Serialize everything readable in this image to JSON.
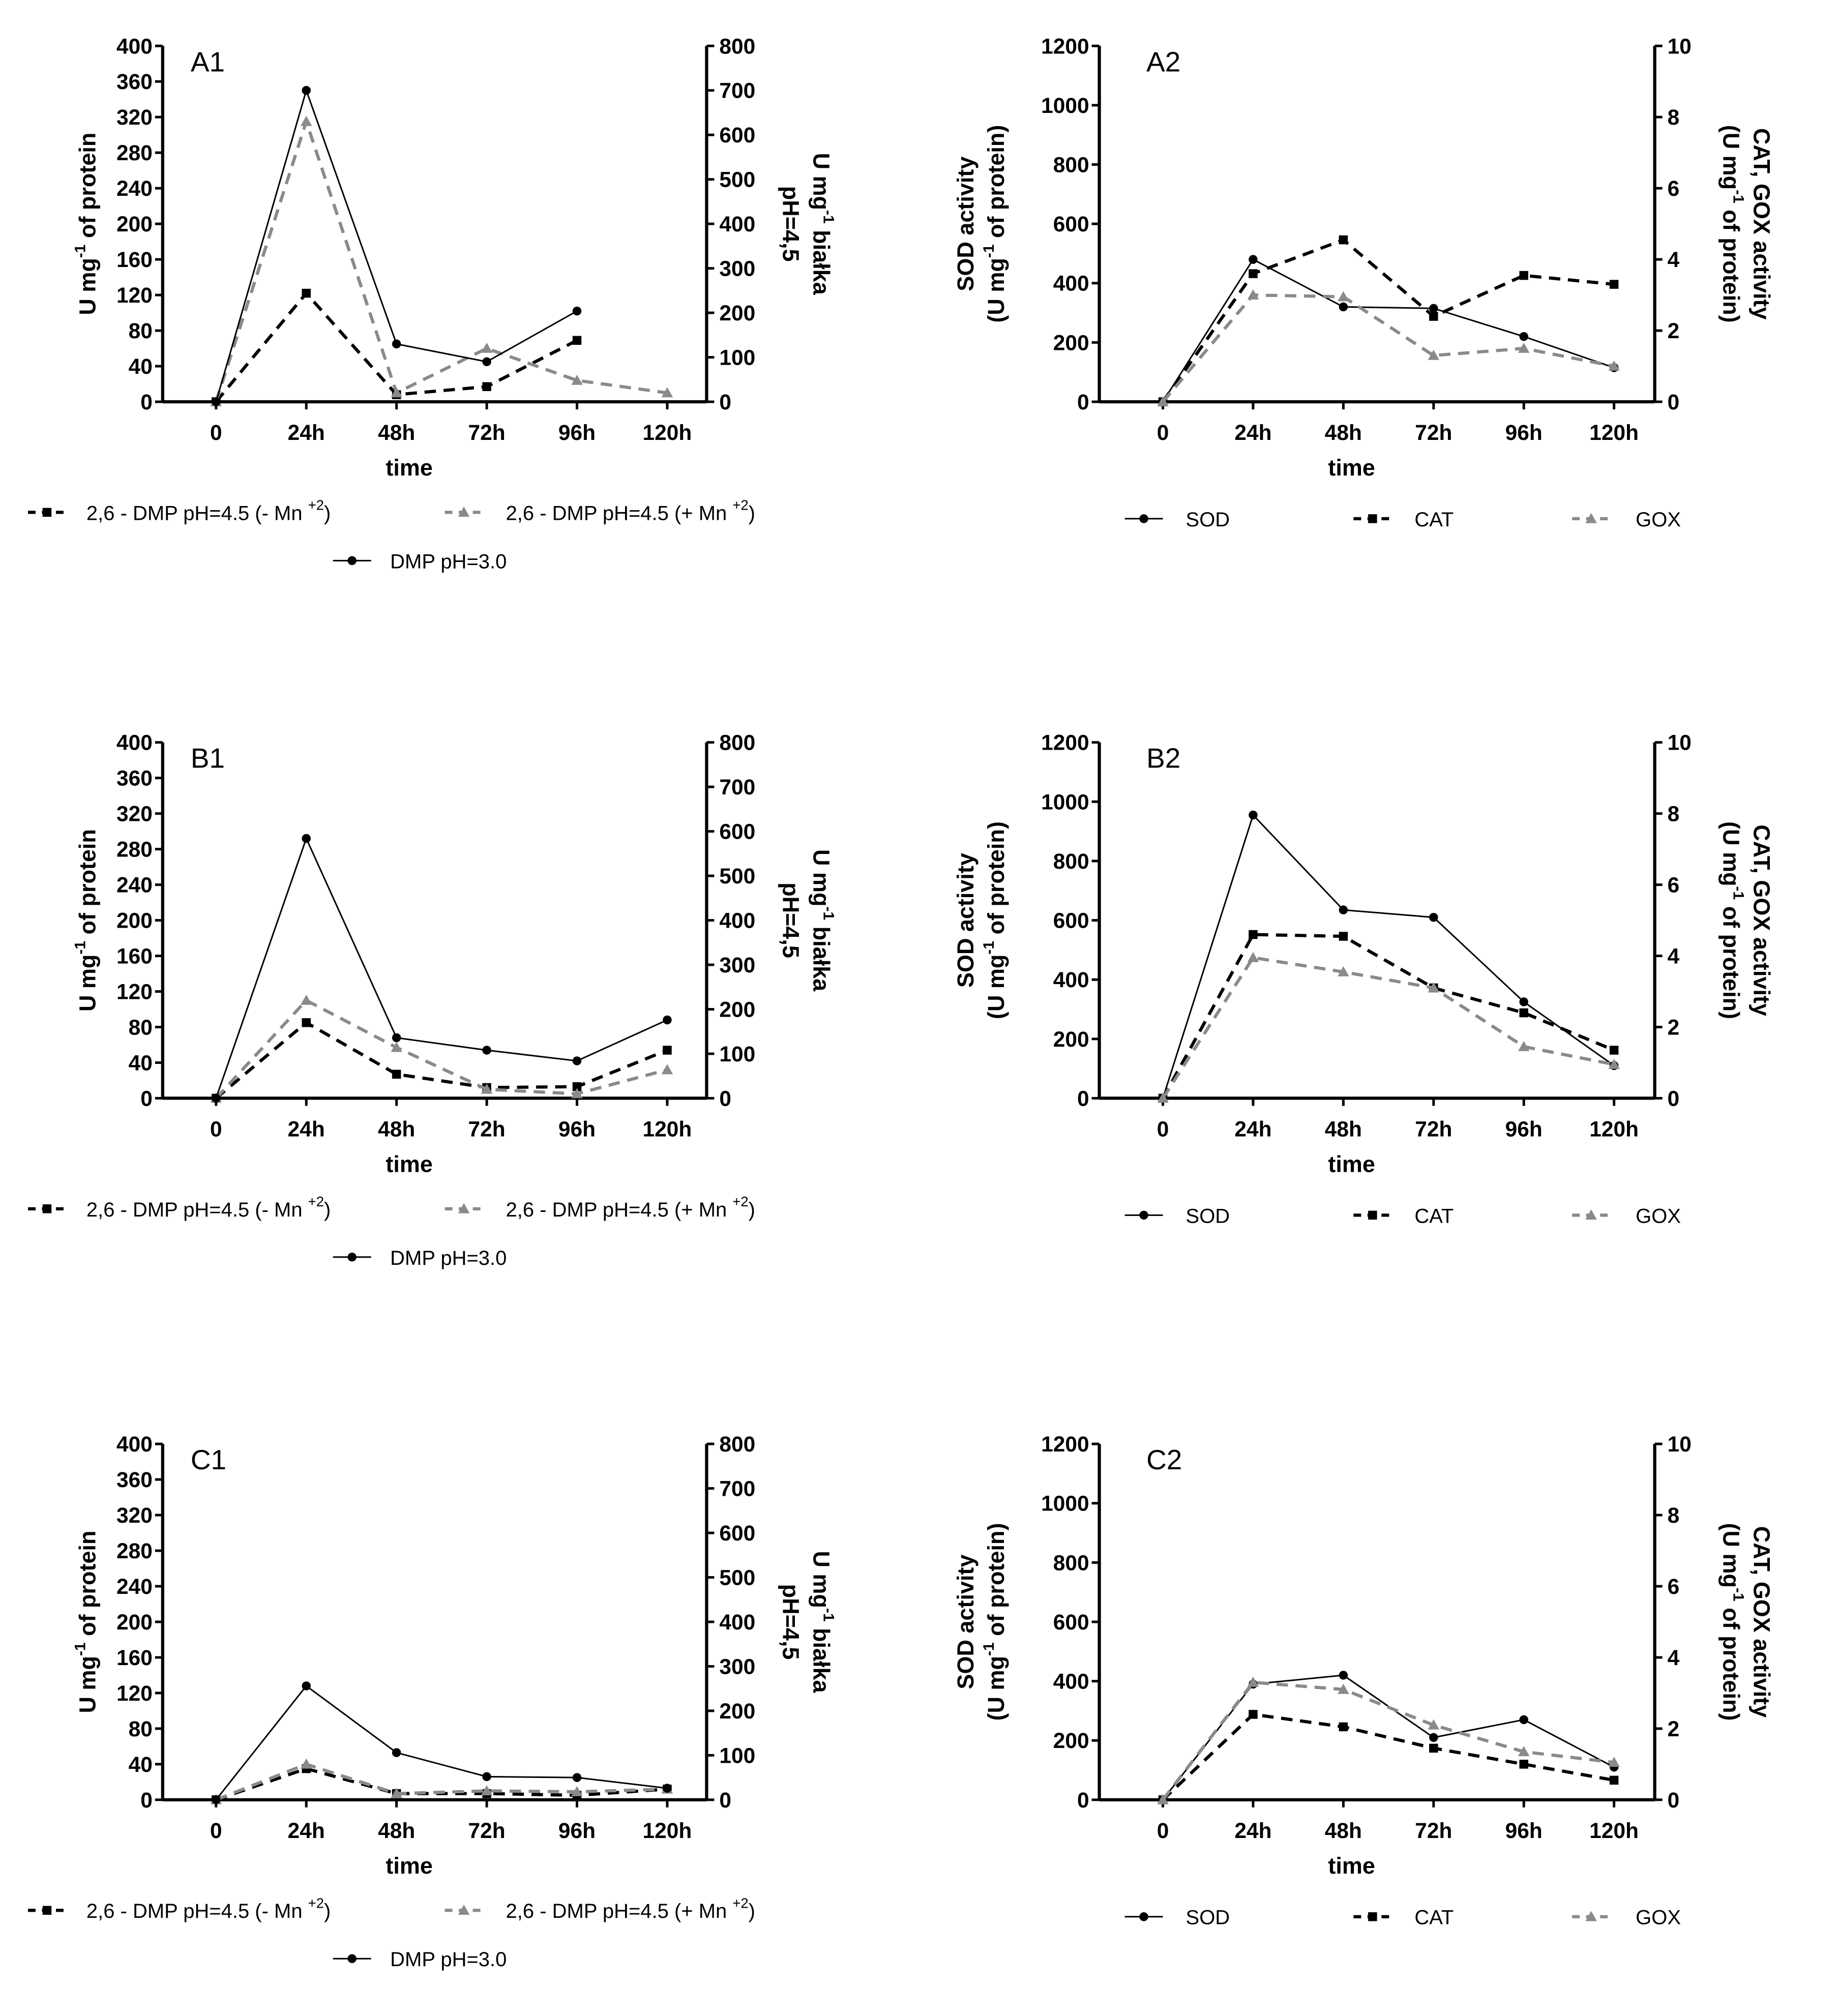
{
  "chart_data": [
    {
      "panel": "A1",
      "type": "line",
      "categories": [
        "0",
        "24h",
        "48h",
        "72h",
        "96h",
        "120h"
      ],
      "xlabel": "time",
      "ylabel_left": [
        "U mg|-1| of protein"
      ],
      "ylabel_right": [
        "U mg|-1| białka",
        "pH=4,5"
      ],
      "ylim_left": [
        0,
        400
      ],
      "ytick_step_left": 40,
      "ylim_right": [
        0,
        800
      ],
      "ytick_step_right": 100,
      "series": [
        {
          "name": "2,6 - DMP pH=4.5 (- Mn |+2|)",
          "axis": "right",
          "style": "dash",
          "marker": "square",
          "color": "#000000",
          "values": [
            0,
            244,
            16,
            34,
            138,
            null
          ]
        },
        {
          "name": "2,6 - DMP pH=4.5 (+ Mn |+2|)",
          "axis": "right",
          "style": "dash",
          "marker": "triangle",
          "color": "#8a8a8a",
          "values": [
            0,
            630,
            20,
            120,
            48,
            20
          ]
        },
        {
          "name": "DMP pH=3.0",
          "axis": "left",
          "style": "solid",
          "marker": "circle",
          "color": "#000000",
          "values": [
            0,
            350,
            65,
            45,
            102,
            null
          ]
        }
      ]
    },
    {
      "panel": "A2",
      "type": "line",
      "categories": [
        "0",
        "24h",
        "48h",
        "72h",
        "96h",
        "120h"
      ],
      "xlabel": "time",
      "ylabel_left": [
        "SOD activity",
        "(U mg|-1| of protein)"
      ],
      "ylabel_right": [
        "CAT, GOX activity",
        "(U mg|-1| of protein)"
      ],
      "ylim_left": [
        0,
        1200
      ],
      "ytick_step_left": 200,
      "ylim_right": [
        0,
        10
      ],
      "ytick_step_right": 2,
      "series": [
        {
          "name": "SOD",
          "axis": "left",
          "style": "solid",
          "marker": "circle",
          "color": "#000000",
          "values": [
            0,
            480,
            320,
            315,
            220,
            115
          ]
        },
        {
          "name": "CAT",
          "axis": "right",
          "style": "dash",
          "marker": "square",
          "color": "#000000",
          "values": [
            0,
            3.6,
            4.55,
            2.4,
            3.55,
            3.3
          ]
        },
        {
          "name": "GOX",
          "axis": "right",
          "style": "dash",
          "marker": "triangle",
          "color": "#8a8a8a",
          "values": [
            0,
            3.0,
            2.95,
            1.3,
            1.5,
            1.0
          ]
        }
      ]
    },
    {
      "panel": "B1",
      "type": "line",
      "categories": [
        "0",
        "24h",
        "48h",
        "72h",
        "96h",
        "120h"
      ],
      "xlabel": "time",
      "ylabel_left": [
        "U mg|-1| of protein"
      ],
      "ylabel_right": [
        "U mg|-1| białka",
        "pH=4,5"
      ],
      "ylim_left": [
        0,
        400
      ],
      "ytick_step_left": 40,
      "ylim_right": [
        0,
        800
      ],
      "ytick_step_right": 100,
      "series": [
        {
          "name": "2,6 - DMP pH=4.5 (- Mn |+2|)",
          "axis": "right",
          "style": "dash",
          "marker": "square",
          "color": "#000000",
          "values": [
            0,
            170,
            54,
            24,
            26,
            108
          ]
        },
        {
          "name": "2,6 - DMP pH=4.5 (+ Mn |+2|)",
          "axis": "right",
          "style": "dash",
          "marker": "triangle",
          "color": "#8a8a8a",
          "values": [
            0,
            220,
            114,
            20,
            10,
            64
          ]
        },
        {
          "name": "DMP pH=3.0",
          "axis": "left",
          "style": "solid",
          "marker": "circle",
          "color": "#000000",
          "values": [
            0,
            292,
            68,
            54,
            42,
            88
          ]
        }
      ]
    },
    {
      "panel": "B2",
      "type": "line",
      "categories": [
        "0",
        "24h",
        "48h",
        "72h",
        "96h",
        "120h"
      ],
      "xlabel": "time",
      "ylabel_left": [
        "SOD activity",
        "(U mg|-1| of protein)"
      ],
      "ylabel_right": [
        "CAT, GOX activity",
        "(U mg|-1| of protein)"
      ],
      "ylim_left": [
        0,
        1200
      ],
      "ytick_step_left": 200,
      "ylim_right": [
        0,
        10
      ],
      "ytick_step_right": 2,
      "series": [
        {
          "name": "SOD",
          "axis": "left",
          "style": "solid",
          "marker": "circle",
          "color": "#000000",
          "values": [
            0,
            955,
            635,
            610,
            325,
            110
          ]
        },
        {
          "name": "CAT",
          "axis": "right",
          "style": "dash",
          "marker": "square",
          "color": "#000000",
          "values": [
            0,
            4.6,
            4.55,
            3.1,
            2.4,
            1.35
          ]
        },
        {
          "name": "GOX",
          "axis": "right",
          "style": "dash",
          "marker": "triangle",
          "color": "#8a8a8a",
          "values": [
            0,
            3.95,
            3.55,
            3.1,
            1.45,
            0.95
          ]
        }
      ]
    },
    {
      "panel": "C1",
      "type": "line",
      "categories": [
        "0",
        "24h",
        "48h",
        "72h",
        "96h",
        "120h"
      ],
      "xlabel": "time",
      "ylabel_left": [
        "U mg|-1| of protein"
      ],
      "ylabel_right": [
        "U mg|-1| białka",
        "pH=4,5"
      ],
      "ylim_left": [
        0,
        400
      ],
      "ytick_step_left": 40,
      "ylim_right": [
        0,
        800
      ],
      "ytick_step_right": 100,
      "series": [
        {
          "name": "2,6 - DMP pH=4.5 (- Mn |+2|)",
          "axis": "right",
          "style": "dash",
          "marker": "square",
          "color": "#000000",
          "values": [
            0,
            70,
            14,
            14,
            10,
            24
          ]
        },
        {
          "name": "2,6 - DMP pH=4.5 (+ Mn |+2|)",
          "axis": "right",
          "style": "dash",
          "marker": "triangle",
          "color": "#8a8a8a",
          "values": [
            0,
            80,
            14,
            20,
            18,
            24
          ]
        },
        {
          "name": "DMP pH=3.0",
          "axis": "left",
          "style": "solid",
          "marker": "circle",
          "color": "#000000",
          "values": [
            0,
            128,
            53,
            26,
            25,
            13
          ]
        }
      ]
    },
    {
      "panel": "C2",
      "type": "line",
      "categories": [
        "0",
        "24h",
        "48h",
        "72h",
        "96h",
        "120h"
      ],
      "xlabel": "time",
      "ylabel_left": [
        "SOD activity",
        "(U mg|-1| of protein)"
      ],
      "ylabel_right": [
        "CAT, GOX activity",
        "(U mg|-1| of protein)"
      ],
      "ylim_left": [
        0,
        1200
      ],
      "ytick_step_left": 200,
      "ylim_right": [
        0,
        10
      ],
      "ytick_step_right": 2,
      "series": [
        {
          "name": "SOD",
          "axis": "left",
          "style": "solid",
          "marker": "circle",
          "color": "#000000",
          "values": [
            0,
            390,
            420,
            210,
            270,
            110
          ]
        },
        {
          "name": "CAT",
          "axis": "right",
          "style": "dash",
          "marker": "square",
          "color": "#000000",
          "values": [
            0,
            2.4,
            2.05,
            1.45,
            1.0,
            0.55
          ]
        },
        {
          "name": "GOX",
          "axis": "right",
          "style": "dash",
          "marker": "triangle",
          "color": "#8a8a8a",
          "values": [
            0,
            3.3,
            3.1,
            2.1,
            1.35,
            1.05
          ]
        }
      ]
    }
  ]
}
